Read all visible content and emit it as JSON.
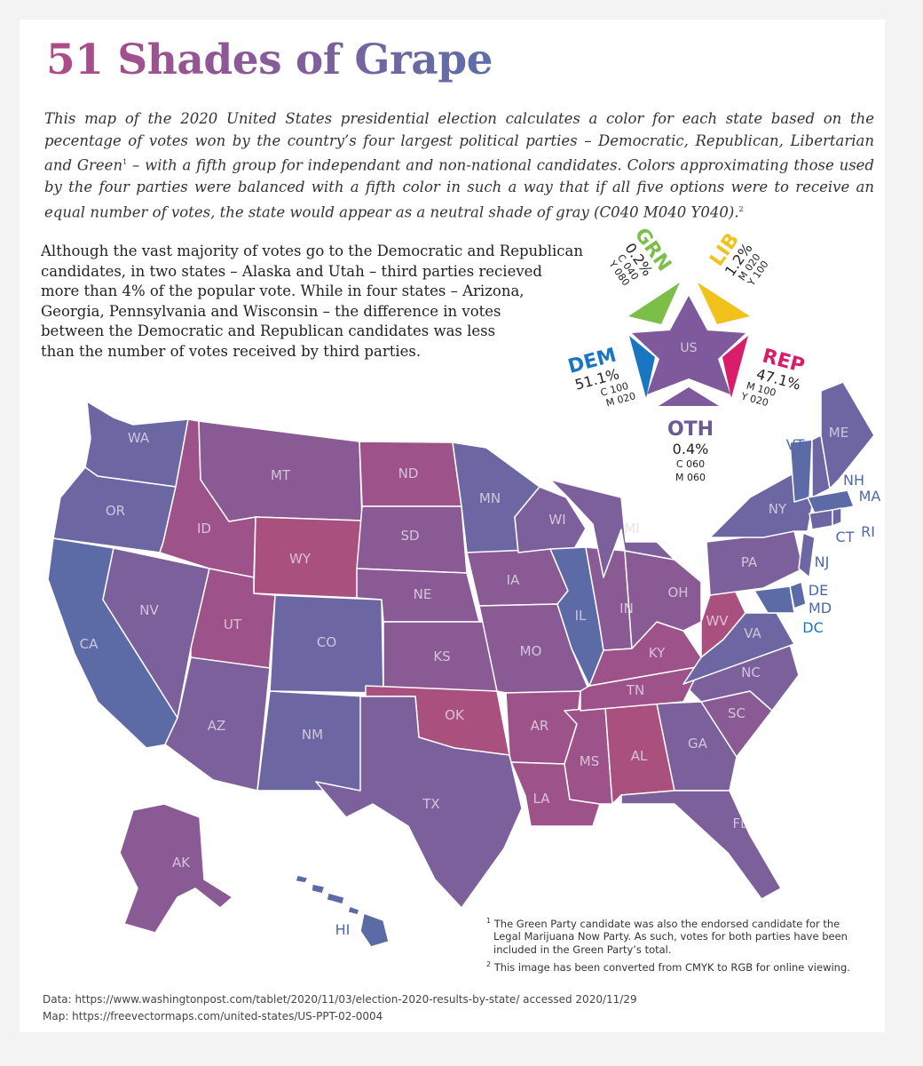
{
  "title": "51 Shades of Grape",
  "intro": {
    "part1": "This map of the 2020 United States presidential election calculates a color for each state based on the pecentage of votes won by the country’s four largest political parties – Democratic, Republican, Libertarian and Green",
    "note_ref1": "1",
    "part2": " – with a fifth group for independant and non-national candidates. Colors approximating those used by the four parties were balanced with a fifth color in such a way that if all five options were to receive an equal number of votes, the state would appear as a neutral shade of gray (C040 M040 Y040).",
    "note_ref2": "2"
  },
  "paragraph2_lines": [
    "Although the vast majority of votes go to the Democratic and Republican",
    "candidates, in two states – Alaska and Utah – third parties recieved",
    "more than 4% of the popular vote. While in four states – Arizona,",
    "Georgia, Pennsylvania and Wisconsin – the difference in votes",
    "between the Democratic and Republican candidates was less",
    "than the number of votes received by third parties."
  ],
  "legend": {
    "center_label": "US",
    "parties": {
      "grn": {
        "code": "GRN",
        "percent": "0.2%",
        "cmyk1": "C 040",
        "cmyk2": "Y 080",
        "color": "#7bbf4a"
      },
      "lib": {
        "code": "LIB",
        "percent": "1.2%",
        "cmyk1": "M 020",
        "cmyk2": "Y 100",
        "color": "#f2c21b"
      },
      "dem": {
        "code": "DEM",
        "percent": "51.1%",
        "cmyk1": "C 100",
        "cmyk2": "M 020",
        "color": "#1a76c2"
      },
      "rep": {
        "code": "REP",
        "percent": "47.1%",
        "cmyk1": "M 100",
        "cmyk2": "Y 020",
        "color": "#d81d6a"
      },
      "oth": {
        "code": "OTH",
        "percent": "0.4%",
        "cmyk1": "C 060",
        "cmyk2": "M 060",
        "color": "#7e5a9c"
      }
    },
    "star_color": "#7e5a9c"
  },
  "state_labels": {
    "WA": "WA",
    "OR": "OR",
    "CA": "CA",
    "NV": "NV",
    "ID": "ID",
    "MT": "MT",
    "WY": "WY",
    "UT": "UT",
    "AZ": "AZ",
    "CO": "CO",
    "NM": "NM",
    "ND": "ND",
    "SD": "SD",
    "NE": "NE",
    "KS": "KS",
    "OK": "OK",
    "TX": "TX",
    "MN": "MN",
    "IA": "IA",
    "MO": "MO",
    "AR": "AR",
    "LA": "LA",
    "WI": "WI",
    "IL": "IL",
    "MI": "MI",
    "IN": "IN",
    "OH": "OH",
    "KY": "KY",
    "TN": "TN",
    "MS": "MS",
    "AL": "AL",
    "GA": "GA",
    "FL": "FL",
    "SC": "SC",
    "NC": "NC",
    "VA": "VA",
    "WV": "WV",
    "PA": "PA",
    "NY": "NY",
    "ME": "ME",
    "AK": "AK",
    "HI": "HI",
    "VT": "VT",
    "NH": "NH",
    "MA": "MA",
    "CT": "CT",
    "RI": "RI",
    "NJ": "NJ",
    "DE": "DE",
    "MD": "MD",
    "DC": "DC"
  },
  "state_colors": {
    "blue": "#5c6aa6",
    "blue_purple": "#6c67a2",
    "purple": "#7b609b",
    "mauve": "#895a93",
    "magenta": "#9d5289",
    "pink": "#a9507f"
  },
  "footnotes": {
    "note1_ref": "1",
    "note1": "The Green Party candidate was also the endorsed candidate for the Legal Marijuana Now Party. As such, votes for both parties have been included in the Green Party’s total.",
    "note2_ref": "2",
    "note2": "This image has been converted from CMYK to RGB for online viewing."
  },
  "sources": {
    "data": "Data: https://www.washingtonpost.com/tablet/2020/11/03/election-2020-results-by-state/ accessed 2020/11/29",
    "map": "Map: https://freevectormaps.com/united-states/US-PPT-02-0004"
  }
}
